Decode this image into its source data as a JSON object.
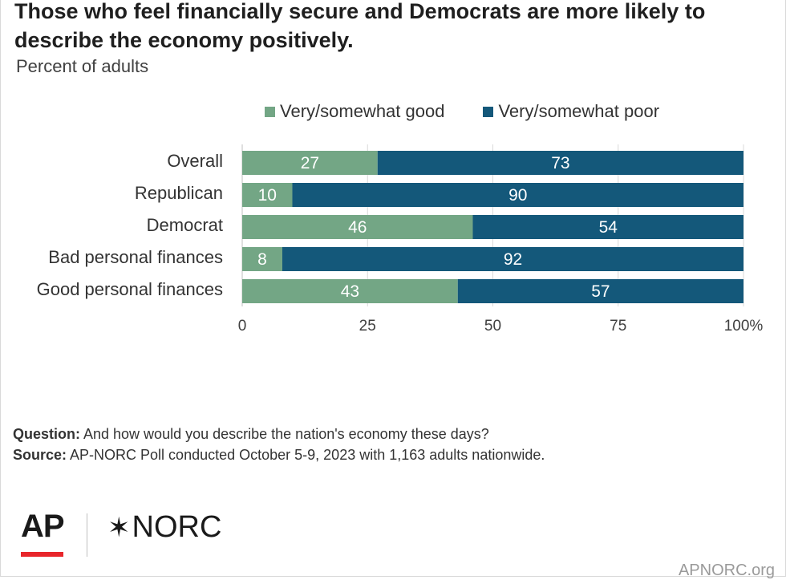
{
  "title": "Those who feel financially secure and Democrats are more likely to describe the economy positively.",
  "subtitle": "Percent of adults",
  "colors": {
    "good": "#73a685",
    "poor": "#14587a",
    "grid": "#d9d9d9"
  },
  "chart_data": {
    "type": "bar",
    "orientation": "horizontal",
    "stacked": true,
    "categories": [
      "Overall",
      "Republican",
      "Democrat",
      "Bad personal finances",
      "Good personal finances"
    ],
    "groups": [
      [
        0
      ],
      [
        1,
        2
      ],
      [
        3,
        4
      ]
    ],
    "series": [
      {
        "name": "Very/somewhat good",
        "values": [
          27,
          10,
          46,
          8,
          43
        ]
      },
      {
        "name": "Very/somewhat poor",
        "values": [
          73,
          90,
          54,
          92,
          57
        ]
      }
    ],
    "xlim": [
      0,
      100
    ],
    "xticks": [
      "0",
      "25",
      "50",
      "75",
      "100%"
    ],
    "xtick_values": [
      0,
      25,
      50,
      75,
      100
    ],
    "grid": true,
    "legend_position": "top"
  },
  "footer": {
    "question_label": "Question:",
    "question_text": " And how would you describe the nation's economy these days?",
    "source_label": "Source:",
    "source_text": " AP-NORC Poll conducted October 5-9, 2023 with 1,163 adults nationwide."
  },
  "logos": {
    "ap": "AP",
    "norc_star": "✶",
    "norc": "NORC"
  },
  "site": "APNORC.org"
}
